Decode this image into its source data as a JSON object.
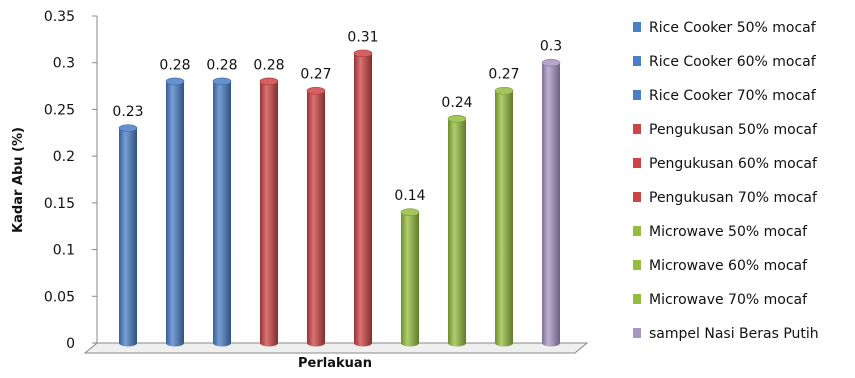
{
  "chart_data": {
    "type": "bar",
    "title": "",
    "xlabel": "Perlakuan",
    "ylabel": "Kadar Abu (%)",
    "ylim": [
      0,
      0.35
    ],
    "yticks": [
      "0",
      "0.05",
      "0.1",
      "0.15",
      "0.2",
      "0.25",
      "0.3",
      "0.35"
    ],
    "style": "3d-cylinder",
    "grid": false,
    "legend_position": "right",
    "series": [
      {
        "name": "Rice Cooker 50% mocaf",
        "value": 0.23,
        "label": "0.23",
        "color": "#4a7ec7"
      },
      {
        "name": "Rice Cooker 60% mocaf",
        "value": 0.28,
        "label": "0.28",
        "color": "#4a7ec7"
      },
      {
        "name": "Rice Cooker 70% mocaf",
        "value": 0.28,
        "label": "0.28",
        "color": "#4a7ec7"
      },
      {
        "name": "Pengukusan 50% mocaf",
        "value": 0.28,
        "label": "0.28",
        "color": "#cc4444"
      },
      {
        "name": "Pengukusan 60% mocaf",
        "value": 0.27,
        "label": "0.27",
        "color": "#cc4444"
      },
      {
        "name": "Pengukusan 70% mocaf",
        "value": 0.31,
        "label": "0.31",
        "color": "#cc4444"
      },
      {
        "name": "Microwave 50% mocaf",
        "value": 0.14,
        "label": "0.14",
        "color": "#94bd3e"
      },
      {
        "name": "Microwave 60% mocaf",
        "value": 0.24,
        "label": "0.24",
        "color": "#94bd3e"
      },
      {
        "name": "Microwave 70% mocaf",
        "value": 0.27,
        "label": "0.27",
        "color": "#94bd3e"
      },
      {
        "name": "sampel  Nasi Beras Putih",
        "value": 0.3,
        "label": "0.3",
        "color": "#a895c4"
      }
    ]
  }
}
